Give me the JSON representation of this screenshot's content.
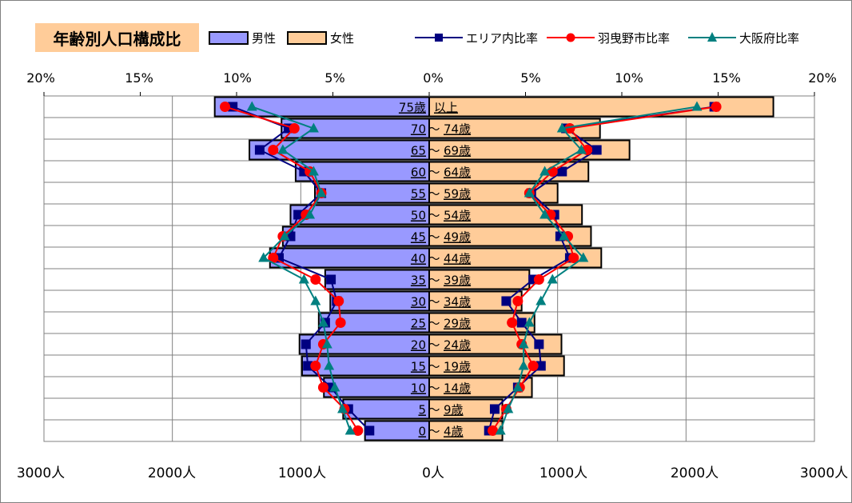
{
  "chart_data": {
    "type": "bar",
    "title": "年齢別人口構成比",
    "legend": {
      "male_label": "男性",
      "female_label": "女性",
      "area_label": "エリア内比率",
      "city_label": "羽曳野市比率",
      "pref_label": "大阪府比率",
      "placement": "top"
    },
    "categories": [
      "75歳以上",
      "70 ～ 74歳",
      "65 ～ 69歳",
      "60 ～ 64歳",
      "55 ～ 59歳",
      "50 ～ 54歳",
      "45 ～ 49歳",
      "40 ～ 44歳",
      "35 ～ 39歳",
      "30 ～ 34歳",
      "25 ～ 29歳",
      "20 ～ 24歳",
      "15 ～ 19歳",
      "10 ～ 14歳",
      "5 ～ 9歳",
      "0 ～ 4歳"
    ],
    "category_labels": [
      [
        "75歳",
        "以上"
      ],
      [
        "70",
        "74歳"
      ],
      [
        "65",
        "69歳"
      ],
      [
        "60",
        "64歳"
      ],
      [
        "55",
        "59歳"
      ],
      [
        "50",
        "54歳"
      ],
      [
        "45",
        "49歳"
      ],
      [
        "40",
        "44歳"
      ],
      [
        "35",
        "39歳"
      ],
      [
        "30",
        "34歳"
      ],
      [
        "25",
        "29歳"
      ],
      [
        "20",
        "24歳"
      ],
      [
        "15",
        "19歳"
      ],
      [
        "10",
        "14歳"
      ],
      [
        "5",
        "9歳"
      ],
      [
        "0",
        "4歳"
      ]
    ],
    "top_axis": {
      "unit": "%",
      "ticks": [
        20,
        15,
        10,
        5,
        0,
        5,
        10,
        15,
        20
      ],
      "labels": [
        "20%",
        "15%",
        "10%",
        "5%",
        "0%",
        "5%",
        "10%",
        "15%",
        "20%"
      ],
      "range": [
        -20,
        20
      ]
    },
    "bottom_axis": {
      "unit": "人",
      "ticks": [
        3000,
        2000,
        1000,
        0,
        1000,
        2000,
        3000
      ],
      "labels": [
        "3000人",
        "2000人",
        "1000人",
        "0人",
        "1000人",
        "2000人",
        "3000人"
      ],
      "range": [
        -3000,
        3000
      ]
    },
    "series": [
      {
        "name": "男性",
        "kind": "bar",
        "side": "left",
        "color": "#9999FF",
        "values": [
          1670,
          1150,
          1400,
          1040,
          890,
          1080,
          1140,
          1240,
          810,
          770,
          860,
          1010,
          990,
          820,
          670,
          500
        ]
      },
      {
        "name": "女性",
        "kind": "bar",
        "side": "right",
        "color": "#FFCC99",
        "values": [
          2680,
          1330,
          1560,
          1240,
          1000,
          1190,
          1260,
          1340,
          780,
          720,
          820,
          1030,
          1050,
          800,
          570,
          570
        ]
      },
      {
        "name": "エリア内比率",
        "kind": "line",
        "color": "#000080",
        "marker": "square",
        "male": [
          10.2,
          7.3,
          8.8,
          6.5,
          5.6,
          6.8,
          7.2,
          7.8,
          5.1,
          4.8,
          5.4,
          6.4,
          6.3,
          5.1,
          4.2,
          3.1
        ],
        "female": [
          14.8,
          7.1,
          8.7,
          6.9,
          5.3,
          6.5,
          6.8,
          7.3,
          5.4,
          4.0,
          4.8,
          5.7,
          5.8,
          4.6,
          3.4,
          3.1
        ]
      },
      {
        "name": "羽曳野市比率",
        "kind": "line",
        "color": "#FF0000",
        "marker": "circle",
        "male": [
          10.6,
          7.0,
          8.1,
          6.2,
          5.6,
          6.4,
          7.6,
          8.1,
          5.9,
          4.7,
          4.6,
          5.5,
          5.9,
          5.5,
          4.4,
          3.7
        ],
        "female": [
          14.9,
          7.3,
          8.2,
          6.4,
          5.2,
          6.3,
          7.2,
          7.5,
          5.7,
          4.6,
          4.3,
          4.8,
          5.4,
          4.7,
          4.0,
          3.3
        ]
      },
      {
        "name": "大阪府比率",
        "kind": "line",
        "color": "#008080",
        "marker": "triangle",
        "male": [
          9.2,
          6.0,
          7.6,
          6.0,
          5.6,
          6.2,
          7.5,
          8.6,
          6.5,
          5.9,
          5.5,
          5.3,
          5.2,
          4.9,
          4.5,
          4.1
        ],
        "female": [
          13.9,
          6.9,
          7.9,
          6.0,
          5.2,
          6.0,
          7.0,
          8.0,
          6.4,
          5.8,
          5.2,
          4.9,
          4.9,
          4.6,
          4.1,
          3.7
        ]
      }
    ],
    "grid": true
  }
}
